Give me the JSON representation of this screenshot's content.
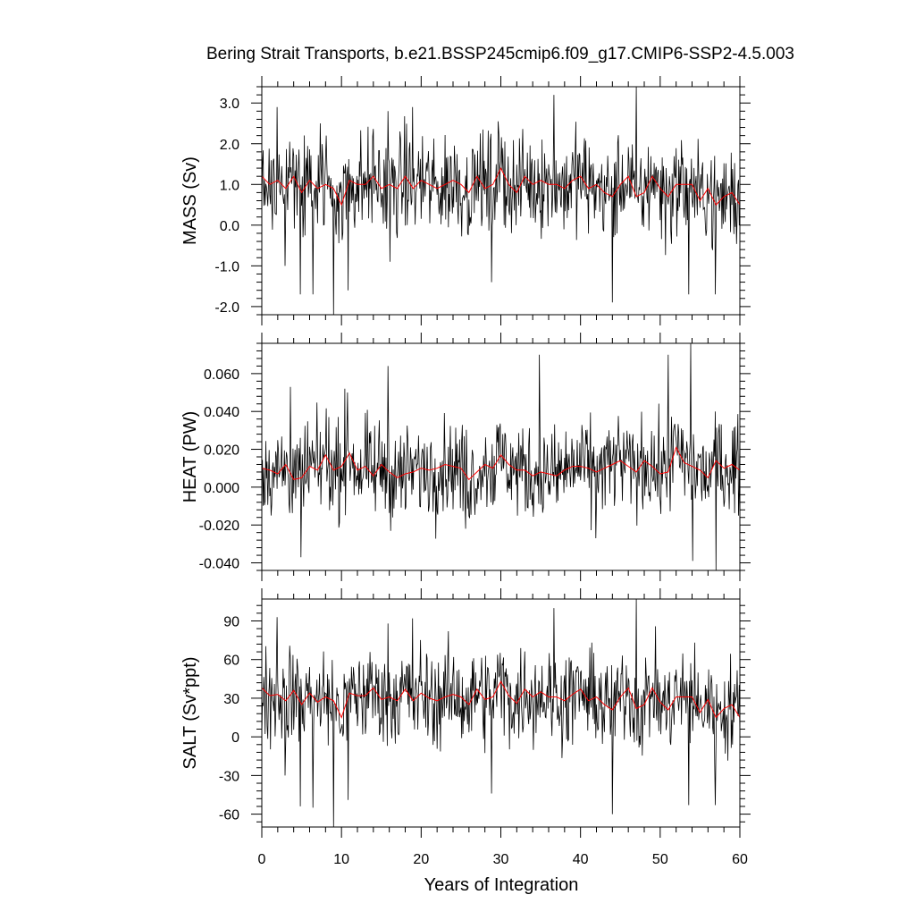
{
  "chart_data": {
    "type": "line",
    "title": "Bering Strait Transports, b.e21.BSSP245cmip6.f09_g17.CMIP6-SSP2-4.5.003",
    "xlabel": "Years of Integration",
    "xlim": [
      0,
      60
    ],
    "xticks": [
      "0",
      "10",
      "20",
      "30",
      "40",
      "50",
      "60"
    ],
    "colors": {
      "monthly": "#000000",
      "annual": "#ff0000"
    },
    "panels": [
      {
        "ylabel": "MASS (Sv)",
        "ylim": [
          -2.2,
          3.4
        ],
        "yticks": [
          {
            "value": 3.0,
            "label": "3.0"
          },
          {
            "value": 2.0,
            "label": "2.0"
          },
          {
            "value": 1.0,
            "label": "1.0"
          },
          {
            "value": 0.0,
            "label": "0.0"
          },
          {
            "value": -1.0,
            "label": "-1.0"
          },
          {
            "value": -2.0,
            "label": "-2.0"
          }
        ],
        "annual": [
          1.2,
          1.0,
          1.1,
          0.9,
          1.2,
          0.8,
          1.1,
          0.9,
          1.0,
          0.9,
          0.5,
          1.1,
          1.0,
          1.0,
          1.2,
          0.9,
          1.0,
          0.9,
          1.2,
          0.9,
          1.1,
          1.0,
          0.9,
          1.0,
          1.1,
          1.0,
          0.8,
          1.2,
          0.9,
          1.0,
          1.4,
          1.0,
          0.8,
          1.2,
          1.0,
          1.1,
          1.0,
          1.0,
          0.9,
          1.1,
          1.2,
          0.9,
          1.0,
          0.8,
          0.7,
          1.0,
          1.2,
          0.7,
          0.8,
          1.2,
          0.9,
          0.7,
          1.0,
          1.0,
          1.0,
          0.6,
          0.9,
          0.5,
          0.7,
          0.8,
          0.5
        ],
        "monthly_extremes": [
          {
            "x": 1.9,
            "y": 2.9
          },
          {
            "x": 2.9,
            "y": -1.0
          },
          {
            "x": 4.8,
            "y": -1.7
          },
          {
            "x": 6.4,
            "y": -1.7
          },
          {
            "x": 7.3,
            "y": 2.5
          },
          {
            "x": 8.1,
            "y": 2.2
          },
          {
            "x": 9.0,
            "y": -2.2
          },
          {
            "x": 10.8,
            "y": -1.6
          },
          {
            "x": 15.8,
            "y": 2.8
          },
          {
            "x": 16.1,
            "y": -0.9
          },
          {
            "x": 18.9,
            "y": 2.9
          },
          {
            "x": 28.8,
            "y": -1.4
          },
          {
            "x": 36.7,
            "y": 3.2
          },
          {
            "x": 44.0,
            "y": -1.9
          },
          {
            "x": 47.0,
            "y": 3.4
          },
          {
            "x": 53.6,
            "y": -1.7
          },
          {
            "x": 56.9,
            "y": -1.7
          }
        ]
      },
      {
        "ylabel": "HEAT (PW)",
        "ylim": [
          -0.044,
          0.076
        ],
        "yticks": [
          {
            "value": 0.06,
            "label": "0.060"
          },
          {
            "value": 0.04,
            "label": "0.040"
          },
          {
            "value": 0.02,
            "label": "0.020"
          },
          {
            "value": 0.0,
            "label": "0.000"
          },
          {
            "value": -0.02,
            "label": "-0.020"
          },
          {
            "value": -0.04,
            "label": "-0.040"
          }
        ],
        "annual": [
          0.01,
          0.009,
          0.007,
          0.012,
          0.004,
          0.005,
          0.011,
          0.009,
          0.017,
          0.009,
          0.011,
          0.018,
          0.009,
          0.011,
          0.006,
          0.012,
          0.008,
          0.005,
          0.007,
          0.008,
          0.01,
          0.009,
          0.01,
          0.012,
          0.011,
          0.01,
          0.004,
          0.008,
          0.012,
          0.01,
          0.017,
          0.012,
          0.009,
          0.009,
          0.006,
          0.008,
          0.007,
          0.006,
          0.009,
          0.011,
          0.011,
          0.01,
          0.008,
          0.01,
          0.012,
          0.014,
          0.011,
          0.008,
          0.014,
          0.011,
          0.007,
          0.008,
          0.021,
          0.013,
          0.011,
          0.009,
          0.005,
          0.014,
          0.01,
          0.012,
          0.009
        ],
        "monthly_extremes": [
          {
            "x": 3.6,
            "y": 0.053
          },
          {
            "x": 4.9,
            "y": -0.037
          },
          {
            "x": 10.4,
            "y": 0.052
          },
          {
            "x": 15.8,
            "y": 0.064
          },
          {
            "x": 25.6,
            "y": -0.022
          },
          {
            "x": 34.8,
            "y": 0.07
          },
          {
            "x": 41.9,
            "y": -0.027
          },
          {
            "x": 51.0,
            "y": 0.07
          },
          {
            "x": 53.8,
            "y": 0.076
          },
          {
            "x": 54.1,
            "y": -0.039
          },
          {
            "x": 57.0,
            "y": -0.044
          }
        ]
      },
      {
        "ylabel": "SALT (Sv*ppt)",
        "ylim": [
          -70,
          107
        ],
        "yticks": [
          {
            "value": 90,
            "label": "90"
          },
          {
            "value": 60,
            "label": "60"
          },
          {
            "value": 30,
            "label": "30"
          },
          {
            "value": 0,
            "label": "0"
          },
          {
            "value": -30,
            "label": "-30"
          },
          {
            "value": -60,
            "label": "-60"
          }
        ],
        "annual": [
          38,
          32,
          33,
          28,
          36,
          25,
          34,
          27,
          31,
          28,
          15,
          34,
          32,
          32,
          38,
          29,
          31,
          28,
          37,
          28,
          34,
          30,
          28,
          31,
          33,
          31,
          25,
          37,
          29,
          31,
          43,
          32,
          26,
          37,
          31,
          35,
          31,
          31,
          28,
          33,
          37,
          28,
          31,
          25,
          21,
          31,
          38,
          22,
          25,
          38,
          27,
          21,
          31,
          31,
          31,
          19,
          29,
          15,
          22,
          25,
          15
        ],
        "monthly_extremes": [
          {
            "x": 1.9,
            "y": 93
          },
          {
            "x": 2.9,
            "y": -30
          },
          {
            "x": 4.8,
            "y": -54
          },
          {
            "x": 6.4,
            "y": -55
          },
          {
            "x": 9.0,
            "y": -70
          },
          {
            "x": 10.8,
            "y": -49
          },
          {
            "x": 15.8,
            "y": 88
          },
          {
            "x": 18.9,
            "y": 92
          },
          {
            "x": 28.8,
            "y": -44
          },
          {
            "x": 36.7,
            "y": 100
          },
          {
            "x": 44.0,
            "y": -60
          },
          {
            "x": 47.0,
            "y": 107
          },
          {
            "x": 53.6,
            "y": -53
          },
          {
            "x": 56.9,
            "y": -53
          }
        ]
      }
    ]
  }
}
